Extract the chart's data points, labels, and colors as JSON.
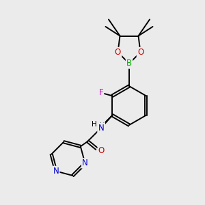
{
  "background_color": "#ebebeb",
  "bond_color": "#000000",
  "atom_colors": {
    "C": "#000000",
    "N": "#0000cc",
    "O": "#cc0000",
    "F": "#cc00cc",
    "B": "#00aa00",
    "H": "#000000"
  },
  "font_size": 8.5,
  "linewidth": 1.4
}
